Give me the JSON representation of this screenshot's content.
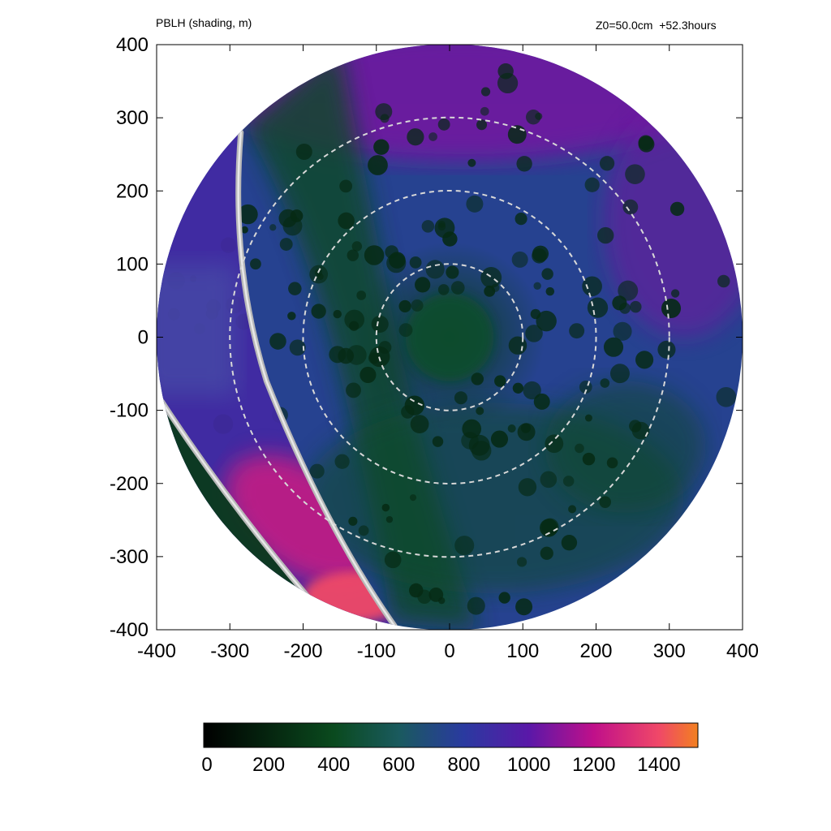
{
  "header": {
    "title_left": "PBLH (shading, m)",
    "title_right": "Z0=50.0cm  +52.3hours"
  },
  "chart_data": {
    "type": "heatmap",
    "title": "PBLH (shading, m)",
    "annotation": "Z0=50.0cm  +52.3hours",
    "xlim": [
      -400,
      400
    ],
    "ylim": [
      -400,
      400
    ],
    "xticks": [
      -400,
      -300,
      -200,
      -100,
      0,
      100,
      200,
      300,
      400
    ],
    "yticks": [
      -400,
      -300,
      -200,
      -100,
      0,
      100,
      200,
      300,
      400
    ],
    "xlabel": "",
    "ylabel": "",
    "domain": "circular, radius 400",
    "dashed_circles_radii": [
      100,
      200,
      300
    ],
    "dashed_circle_color": "#d8d8d8",
    "field_description": {
      "inner_core_value": 450,
      "broad_background_value": 750,
      "northern_band_value": 1050,
      "western_sector_value": 900,
      "southwest_wedge_max_value": 1400
    },
    "colorbar": {
      "ticks": [
        0,
        200,
        400,
        600,
        800,
        1000,
        1200,
        1400
      ],
      "range": [
        0,
        1520
      ],
      "stops": [
        {
          "value": 0,
          "color": "#000000"
        },
        {
          "value": 400,
          "color": "#0a4a1e"
        },
        {
          "value": 600,
          "color": "#1a5a5e"
        },
        {
          "value": 800,
          "color": "#2a3aa0"
        },
        {
          "value": 1000,
          "color": "#5a18a8"
        },
        {
          "value": 1200,
          "color": "#c0108a"
        },
        {
          "value": 1400,
          "color": "#f04868"
        },
        {
          "value": 1520,
          "color": "#f28020"
        }
      ]
    }
  }
}
